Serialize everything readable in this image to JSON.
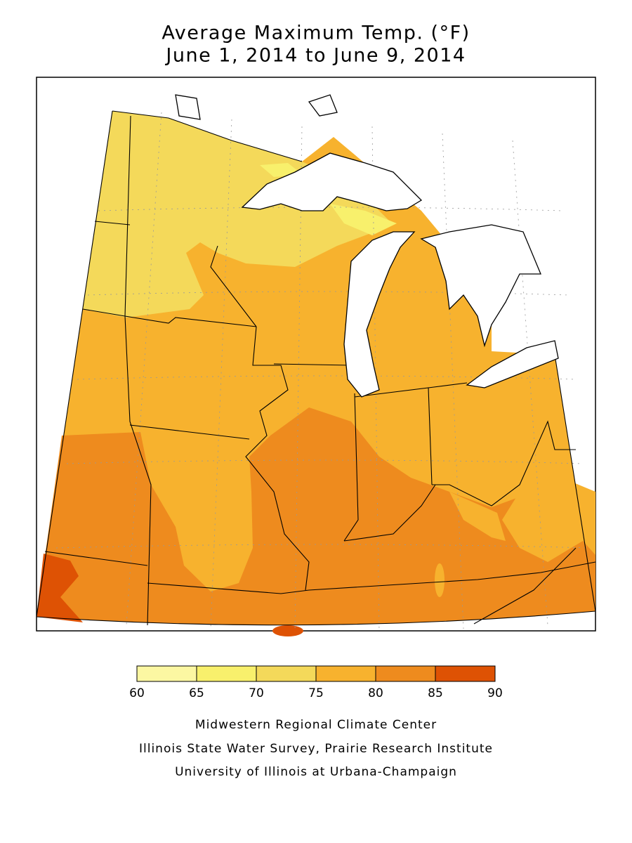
{
  "title": [
    "Average Maximum Temp. (°F)",
    "June 1, 2014 to June 9, 2014"
  ],
  "legend": {
    "bins": [
      60,
      65,
      70,
      75,
      80,
      85,
      90
    ],
    "colors": [
      "#fcf7a2",
      "#f8f06c",
      "#f4d95a",
      "#f7b22e",
      "#ee8b1e",
      "#de5204"
    ]
  },
  "credits": [
    "Midwestern Regional Climate Center",
    "Illinois State Water Survey, Prairie Research Institute",
    "University of Illinois at Urbana-Champaign"
  ]
}
